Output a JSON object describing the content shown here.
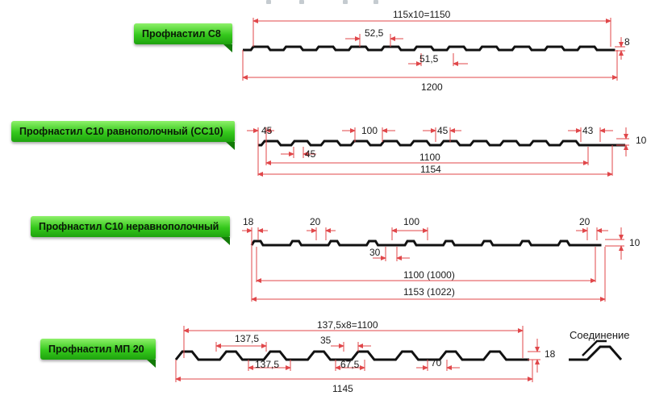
{
  "labels": {
    "c8": "Профнастил С8",
    "c10r": "Профнастил С10 равнополочный (СС10)",
    "c10n": "Профнастил С10 неравнополочный",
    "mp20": "Профнастил МП 20"
  },
  "dims": {
    "c8": {
      "total": "115x10=1150",
      "rib": "52,5",
      "valley": "51,5",
      "width": "1200",
      "height": "8"
    },
    "c10r": {
      "left": "45",
      "mid": "100",
      "mid2": "45",
      "right": "43",
      "height": "10",
      "bottom_rib": "45",
      "useful": "1100",
      "width": "1154"
    },
    "c10n": {
      "left": "18",
      "rib": "20",
      "pitch": "100",
      "right_rib": "20",
      "height": "10",
      "valley": "30",
      "useful": "1100 (1000)",
      "width": "1153 (1022)"
    },
    "mp20": {
      "total": "137,5x8=1100",
      "top_pitch": "137,5",
      "top_rib": "35",
      "bottom_pitch": "137,5",
      "valley": "67,5",
      "bottom_rib": "70",
      "height": "18",
      "width": "1145"
    }
  },
  "connection": {
    "title": "Соединение"
  },
  "colors": {
    "label_green": "#35c81c",
    "dimension_red": "#e0474a",
    "profile_black": "#111111"
  }
}
